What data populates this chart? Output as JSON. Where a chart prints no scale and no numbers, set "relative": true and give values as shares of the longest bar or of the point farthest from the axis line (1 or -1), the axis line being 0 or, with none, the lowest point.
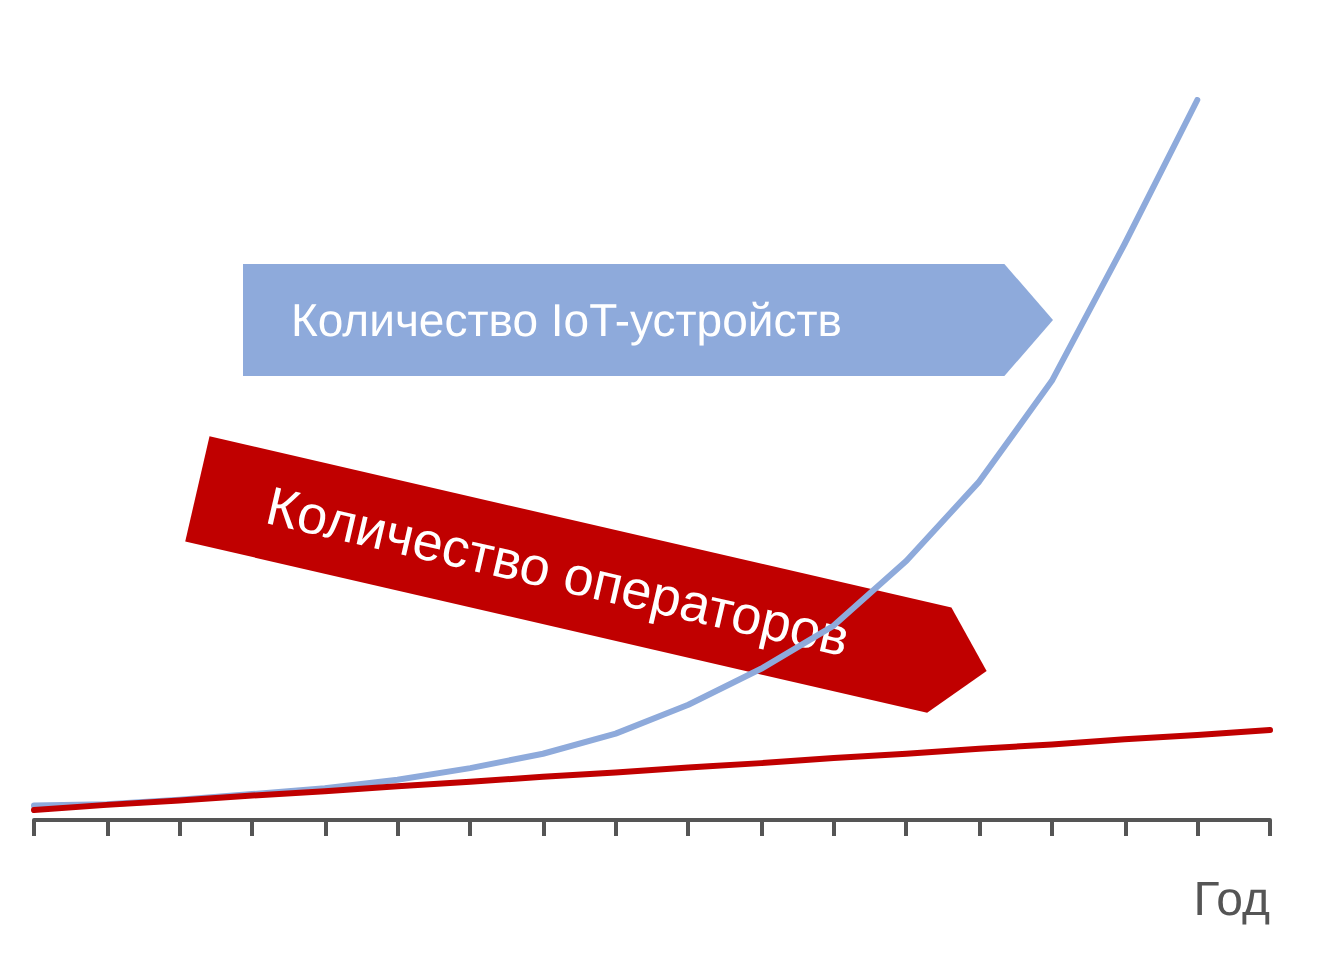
{
  "chart_data": {
    "type": "line",
    "xlabel": "Год",
    "relative": true,
    "categories": [
      null,
      null,
      null,
      null,
      null,
      null,
      null,
      null,
      null,
      null,
      null,
      null,
      null,
      null,
      null,
      null,
      null,
      null
    ],
    "series": [
      {
        "name": "Количество IoT-устройств",
        "color": "#8eaadb",
        "values": [
          0.02,
          0.022,
          0.028,
          0.036,
          0.044,
          0.056,
          0.072,
          0.092,
          0.12,
          0.16,
          0.21,
          0.27,
          0.36,
          0.47,
          0.61,
          0.8,
          1,
          null
        ]
      },
      {
        "name": "Количество операторов",
        "color": "#c00000",
        "values": [
          0.014,
          0.021,
          0.027,
          0.034,
          0.04,
          0.047,
          0.053,
          0.06,
          0.066,
          0.073,
          0.079,
          0.086,
          0.092,
          0.099,
          0.105,
          0.112,
          0.118,
          0.125
        ]
      }
    ],
    "marker": "none",
    "grid": false
  }
}
